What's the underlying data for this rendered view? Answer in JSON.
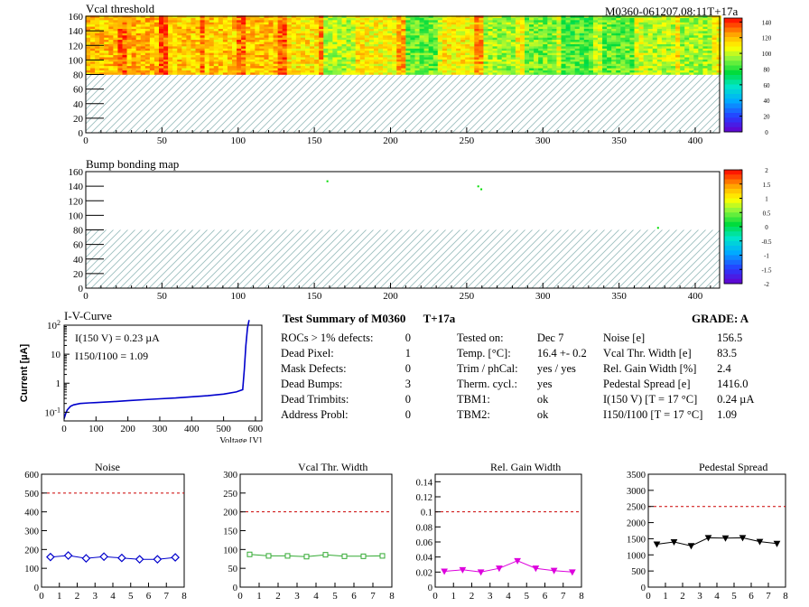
{
  "header": {
    "module_label": "M0360-061207.08:11T+17a"
  },
  "colors": {
    "hatch": "#9dbfbf",
    "line_blue": "#0000cc",
    "dash_red": "#cc0000",
    "noise": "#0000cc",
    "vcal": "#33aa33",
    "gain": "#dd00dd",
    "pedestal": "#000000"
  },
  "summary": {
    "title": "Test Summary of M0360",
    "tag": "T+17a",
    "grade": "GRADE:  A",
    "defects": [
      {
        "label": "ROCs > 1% defects:",
        "value": "0"
      },
      {
        "label": "Dead Pixel:",
        "value": "1"
      },
      {
        "label": "Mask Defects:",
        "value": "0"
      },
      {
        "label": "Dead Bumps:",
        "value": "3"
      },
      {
        "label": "Dead Trimbits:",
        "value": "0"
      },
      {
        "label": "Address Probl:",
        "value": "0"
      }
    ],
    "conditions": [
      {
        "label": "Tested on:",
        "value": "Dec 7"
      },
      {
        "label": "Temp. [°C]:",
        "value": "16.4 +- 0.2"
      },
      {
        "label": "Trim / phCal:",
        "value": "yes / yes"
      },
      {
        "label": "Therm. cycl.:",
        "value": "yes"
      },
      {
        "label": "TBM1:",
        "value": "ok"
      },
      {
        "label": "TBM2:",
        "value": "ok"
      }
    ],
    "results": [
      {
        "label": "Noise [e]",
        "value": "156.5"
      },
      {
        "label": "Vcal Thr. Width [e]",
        "value": "83.5"
      },
      {
        "label": "Rel. Gain Width [%]",
        "value": "2.4"
      },
      {
        "label": "Pedestal Spread [e]",
        "value": "1416.0"
      },
      {
        "label": "I(150 V) [T = 17 °C]",
        "value": "0.24 µA"
      },
      {
        "label": "I150/I100  [T = 17 °C]",
        "value": "1.09"
      }
    ]
  },
  "chart_data": [
    {
      "id": "vcal-threshold",
      "type": "heatmap",
      "title": "Vcal threshold",
      "xlim": [
        0,
        416
      ],
      "ylim": [
        0,
        160
      ],
      "xticks": [
        "0",
        "50",
        "100",
        "150",
        "200",
        "250",
        "300",
        "350",
        "400"
      ],
      "yticks": [
        "0",
        "20",
        "40",
        "60",
        "80",
        "100",
        "120",
        "140",
        "160"
      ],
      "filled_rows": [
        80,
        160
      ],
      "colorbar": {
        "min": 0,
        "max": 145,
        "ticks": [
          "0",
          "20",
          "40",
          "60",
          "80",
          "100",
          "120",
          "140"
        ]
      },
      "roc_means": [
        118,
        120,
        116,
        117,
        118,
        112,
        98,
        108,
        88,
        110,
        95,
        90,
        85,
        88,
        98,
        95
      ],
      "roc_count": 8
    },
    {
      "id": "bump-bonding",
      "type": "heatmap",
      "title": "Bump bonding map",
      "xlim": [
        0,
        416
      ],
      "ylim": [
        0,
        160
      ],
      "xticks": [
        "0",
        "50",
        "100",
        "150",
        "200",
        "250",
        "300",
        "350",
        "400"
      ],
      "yticks": [
        "0",
        "20",
        "40",
        "60",
        "80",
        "100",
        "120",
        "140",
        "160"
      ],
      "filled_rows": [
        80,
        160
      ],
      "colorbar": {
        "min": -2,
        "max": 2,
        "ticks": [
          "2",
          "1.5",
          "1",
          "0.5",
          "0",
          "-0.5",
          "-1",
          "-1.5",
          "-2"
        ]
      },
      "points": [
        [
          158,
          147
        ],
        [
          257,
          140
        ],
        [
          259,
          136
        ],
        [
          375,
          83
        ]
      ]
    },
    {
      "id": "iv-curve",
      "type": "line",
      "title": "I-V-Curve",
      "xlabel": "Voltage [V]",
      "ylabel": "Current [µA]",
      "xlim": [
        0,
        620
      ],
      "ylim_log10": [
        -1.3,
        2
      ],
      "xticks": [
        "0",
        "100",
        "200",
        "300",
        "400",
        "500",
        "600"
      ],
      "yticks": [
        "10^-1",
        "1",
        "10",
        "10^2"
      ],
      "annotations": [
        "I(150 V) = 0.23 µA",
        "I150/I100 =  1.09"
      ],
      "x": [
        0,
        5,
        10,
        20,
        30,
        50,
        80,
        100,
        150,
        200,
        250,
        300,
        350,
        400,
        450,
        500,
        540,
        560,
        565,
        570,
        575,
        580
      ],
      "y": [
        0.06,
        0.09,
        0.12,
        0.16,
        0.18,
        0.2,
        0.21,
        0.215,
        0.23,
        0.25,
        0.27,
        0.29,
        0.31,
        0.34,
        0.37,
        0.42,
        0.5,
        0.6,
        3,
        20,
        80,
        150
      ]
    },
    {
      "id": "noise",
      "type": "line",
      "title": "Noise",
      "xlim": [
        0,
        8
      ],
      "ylim": [
        0,
        600
      ],
      "xticks": [
        "0",
        "1",
        "2",
        "3",
        "4",
        "5",
        "6",
        "7",
        "8"
      ],
      "yticks": [
        "0",
        "100",
        "200",
        "300",
        "400",
        "500",
        "600"
      ],
      "threshold": 500,
      "x": [
        0.5,
        1.5,
        2.5,
        3.5,
        4.5,
        5.5,
        6.5,
        7.5
      ],
      "y": [
        160,
        168,
        153,
        162,
        155,
        148,
        148,
        158
      ],
      "marker": "diamond"
    },
    {
      "id": "vcal-width",
      "type": "line",
      "title": "Vcal Thr. Width",
      "xlim": [
        0,
        8
      ],
      "ylim": [
        0,
        300
      ],
      "xticks": [
        "0",
        "1",
        "2",
        "3",
        "4",
        "5",
        "6",
        "7",
        "8"
      ],
      "yticks": [
        "0",
        "50",
        "100",
        "150",
        "200",
        "250",
        "300"
      ],
      "threshold": 200,
      "x": [
        0.5,
        1.5,
        2.5,
        3.5,
        4.5,
        5.5,
        6.5,
        7.5
      ],
      "y": [
        87,
        83,
        83,
        81,
        86,
        82,
        82,
        83
      ],
      "marker": "square"
    },
    {
      "id": "gain-width",
      "type": "line",
      "title": "Rel. Gain Width",
      "xlim": [
        0,
        8
      ],
      "ylim": [
        0,
        0.15
      ],
      "xticks": [
        "0",
        "1",
        "2",
        "3",
        "4",
        "5",
        "6",
        "7",
        "8"
      ],
      "yticks": [
        "0",
        "0.02",
        "0.04",
        "0.06",
        "0.08",
        "0.1",
        "0.12",
        "0.14"
      ],
      "threshold": 0.1,
      "x": [
        0.5,
        1.5,
        2.5,
        3.5,
        4.5,
        5.5,
        6.5,
        7.5
      ],
      "y": [
        0.021,
        0.023,
        0.02,
        0.025,
        0.035,
        0.025,
        0.022,
        0.02
      ],
      "marker": "triangle-down"
    },
    {
      "id": "pedestal-spread",
      "type": "line",
      "title": "Pedestal Spread",
      "xlim": [
        0,
        8
      ],
      "ylim": [
        0,
        3500
      ],
      "xticks": [
        "0",
        "1",
        "2",
        "3",
        "4",
        "5",
        "6",
        "7",
        "8"
      ],
      "yticks": [
        "0",
        "500",
        "1000",
        "1500",
        "2000",
        "2500",
        "3000",
        "3500"
      ],
      "threshold": 2500,
      "x": [
        0.5,
        1.5,
        2.5,
        3.5,
        4.5,
        5.5,
        6.5,
        7.5
      ],
      "y": [
        1330,
        1400,
        1280,
        1530,
        1520,
        1530,
        1410,
        1350
      ],
      "marker": "triangle-down"
    }
  ]
}
